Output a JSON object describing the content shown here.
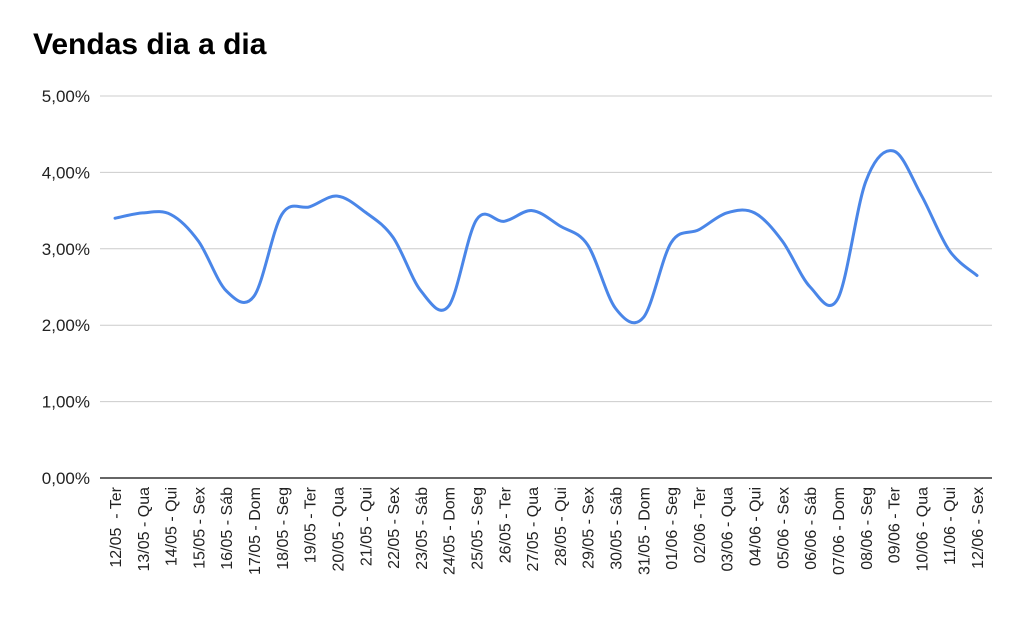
{
  "chart_data": {
    "type": "line",
    "title": "Vendas dia a dia",
    "xlabel": "",
    "ylabel": "",
    "ylim": [
      0,
      5
    ],
    "y_ticks": [
      "0,00%",
      "1,00%",
      "2,00%",
      "3,00%",
      "4,00%",
      "5,00%"
    ],
    "y_tick_values": [
      0,
      1,
      2,
      3,
      4,
      5
    ],
    "grid": true,
    "legend": "none",
    "line_color": "#4a86e8",
    "categories": [
      "12/05  - Ter",
      "13/05 - Qua",
      "14/05 - Qui",
      "15/05 - Sex",
      "16/05 - Sáb",
      "17/05 - Dom",
      "18/05 - Seg",
      "19/05 - Ter",
      "20/05 - Qua",
      "21/05 - Qui",
      "22/05 - Sex",
      "23/05 - Sáb",
      "24/05 - Dom",
      "25/05 - Seg",
      "26/05 - Ter",
      "27/05 - Qua",
      "28/05 - Qui",
      "29/05 - Sex",
      "30/05 - Sáb",
      "31/05 - Dom",
      "01/06 - Seg",
      "02/06 - Ter",
      "03/06 - Qua",
      "04/06 - Qui",
      "05/06 - Sex",
      "06/06 - Sáb",
      "07/06 - Dom",
      "08/06 - Seg",
      "09/06 - Ter",
      "10/06 - Qua",
      "11/06 - Qui",
      "12/06 - Sex"
    ],
    "values": [
      3.4,
      3.47,
      3.45,
      3.1,
      2.45,
      2.38,
      3.45,
      3.55,
      3.69,
      3.48,
      3.15,
      2.45,
      2.25,
      3.38,
      3.36,
      3.5,
      3.3,
      3.05,
      2.22,
      2.1,
      3.08,
      3.25,
      3.47,
      3.47,
      3.1,
      2.5,
      2.35,
      3.88,
      4.28,
      3.7,
      2.98,
      2.65
    ]
  }
}
